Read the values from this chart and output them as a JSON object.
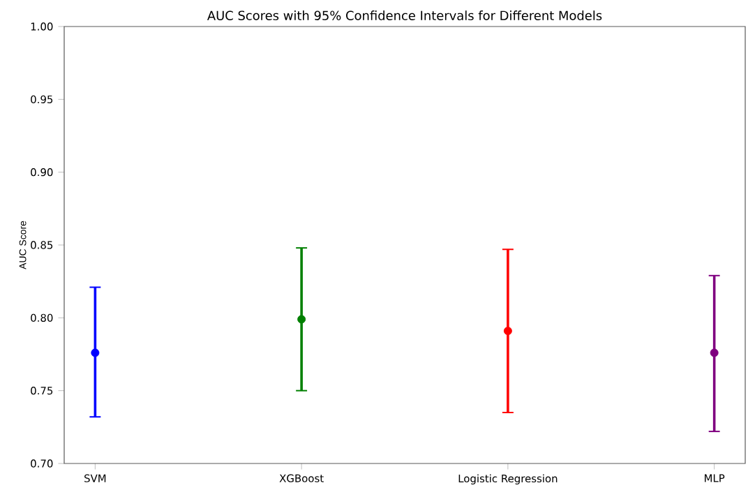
{
  "chart_data": {
    "type": "scatter",
    "title": "AUC Scores with 95% Confidence Intervals for Different Models",
    "ylabel": "AUC Score",
    "categories": [
      "SVM",
      "XGBoost",
      "Logistic Regression",
      "MLP"
    ],
    "values": [
      0.776,
      0.799,
      0.791,
      0.776
    ],
    "errors": [
      [
        0.732,
        0.821
      ],
      [
        0.75,
        0.848
      ],
      [
        0.735,
        0.847
      ],
      [
        0.722,
        0.829
      ]
    ],
    "colors": [
      "#0000ff",
      "#008000",
      "#ff0000",
      "#800080"
    ],
    "marker": "circle",
    "ylim": [
      0.7,
      1.0
    ],
    "yticks": [
      {
        "value": 0.7,
        "label": "0.70"
      },
      {
        "value": 0.75,
        "label": "0.75"
      },
      {
        "value": 0.8,
        "label": "0.80"
      },
      {
        "value": 0.85,
        "label": "0.85"
      },
      {
        "value": 0.9,
        "label": "0.90"
      },
      {
        "value": 0.95,
        "label": "0.95"
      },
      {
        "value": 1.0,
        "label": "1.00"
      }
    ]
  }
}
